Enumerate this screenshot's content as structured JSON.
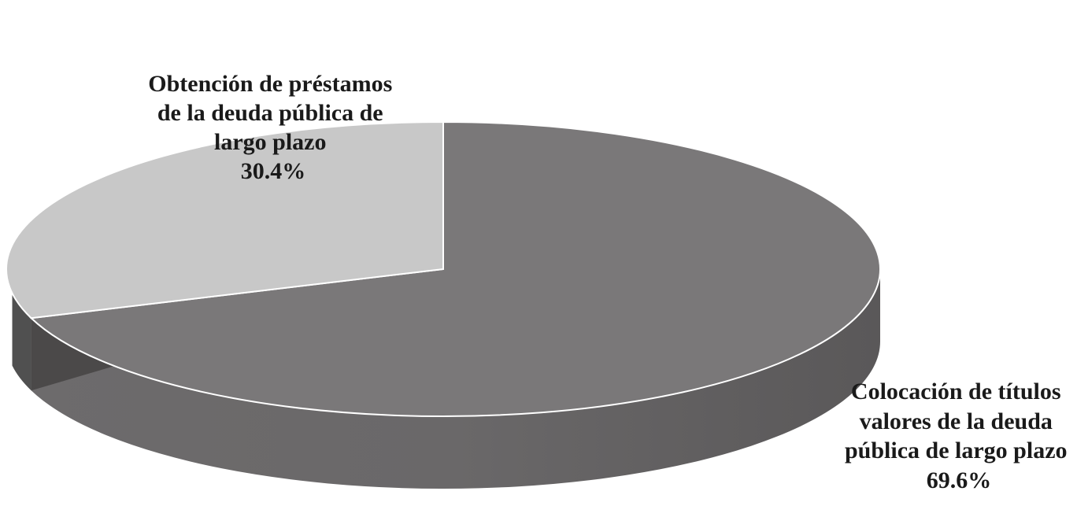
{
  "chart_data": {
    "type": "pie",
    "title": "",
    "slices": [
      {
        "name": "Colocación de títulos valores de la deuda pública de largo plazo",
        "label_lines": [
          "Colocación de títulos",
          "valores de la deuda",
          "pública de largo plazo"
        ],
        "value": 69.6,
        "value_label": "69.6%",
        "color": "#7a7879"
      },
      {
        "name": "Obtención de préstamos de la deuda pública de largo plazo",
        "label_lines": [
          "Obtención de préstamos",
          "de la deuda pública de",
          "largo plazo"
        ],
        "value": 30.4,
        "value_label": "30.4%",
        "color": "#c8c8c8"
      }
    ],
    "legend": "none",
    "style": "3d-pie"
  }
}
